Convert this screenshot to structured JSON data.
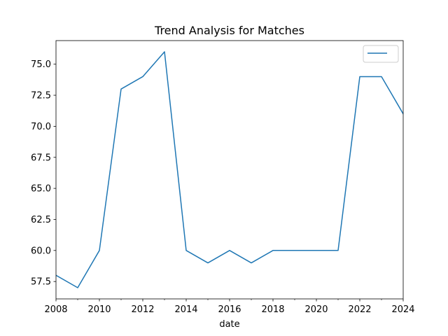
{
  "chart_data": {
    "type": "line",
    "title": "Trend Analysis for Matches",
    "xlabel": "date",
    "ylabel": "",
    "xlim": [
      2008,
      2024
    ],
    "ylim": [
      56.1,
      76.9
    ],
    "x_ticks": [
      2008,
      2010,
      2012,
      2014,
      2016,
      2018,
      2020,
      2022,
      2024
    ],
    "x_minor_ticks": [
      2009,
      2011,
      2013,
      2015,
      2017,
      2019,
      2021,
      2023
    ],
    "y_ticks": [
      57.5,
      60.0,
      62.5,
      65.0,
      67.5,
      70.0,
      72.5,
      75.0
    ],
    "y_tick_labels": [
      "57.5",
      "60.0",
      "62.5",
      "65.0",
      "67.5",
      "70.0",
      "72.5",
      "75.0"
    ],
    "grid": false,
    "legend": {
      "placement": "top-right",
      "entries": [
        ""
      ]
    },
    "series": [
      {
        "color": "#1f77b4",
        "x": [
          2008,
          2009,
          2010,
          2011,
          2012,
          2013,
          2014,
          2015,
          2016,
          2017,
          2018,
          2019,
          2020,
          2021,
          2022,
          2023,
          2024
        ],
        "values": [
          58,
          57,
          60,
          73,
          74,
          76,
          60,
          59,
          60,
          59,
          60,
          60,
          60,
          60,
          74,
          74,
          71
        ]
      }
    ]
  }
}
